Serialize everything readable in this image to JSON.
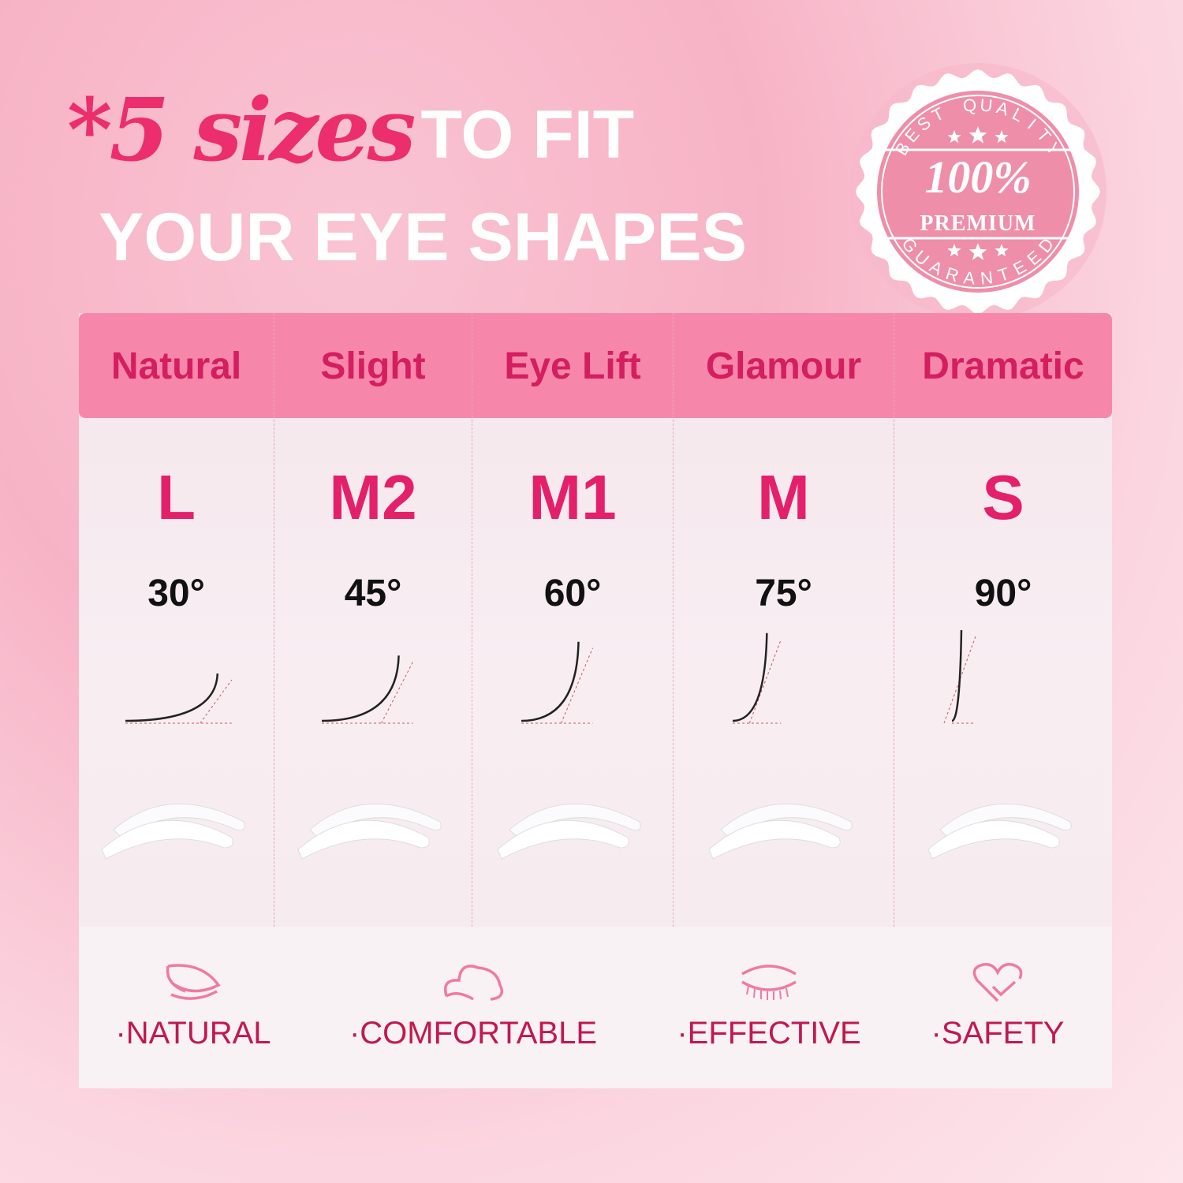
{
  "headline": {
    "script_part": "*5 sizes",
    "line1_rest": "TO FIT",
    "line2": "YOUR EYE SHAPES"
  },
  "badge": {
    "top": "BEST QUALITY",
    "number": "100%",
    "word": "PREMIUM",
    "bottom": "GUARANTEED"
  },
  "columns": [
    {
      "style": "Natural",
      "size": "L",
      "angle": "30°",
      "angle_value": 30
    },
    {
      "style": "Slight",
      "size": "M2",
      "angle": "45°",
      "angle_value": 45
    },
    {
      "style": "Eye Lift",
      "size": "M1",
      "angle": "60°",
      "angle_value": 60
    },
    {
      "style": "Glamour",
      "size": "M",
      "angle": "75°",
      "angle_value": 75
    },
    {
      "style": "Dramatic",
      "size": "S",
      "angle": "90°",
      "angle_value": 90
    }
  ],
  "features": [
    {
      "label": "·NATURAL",
      "icon": "leaf-icon"
    },
    {
      "label": "·COMFORTABLE",
      "icon": "cloud-icon"
    },
    {
      "label": "·EFFECTIVE",
      "icon": "closed-eye-icon"
    },
    {
      "label": "·SAFETY",
      "icon": "heart-check-icon"
    }
  ],
  "colors": {
    "accent": "#e4206a",
    "header_band": "#f687ab",
    "feature_text": "#c2184f"
  }
}
